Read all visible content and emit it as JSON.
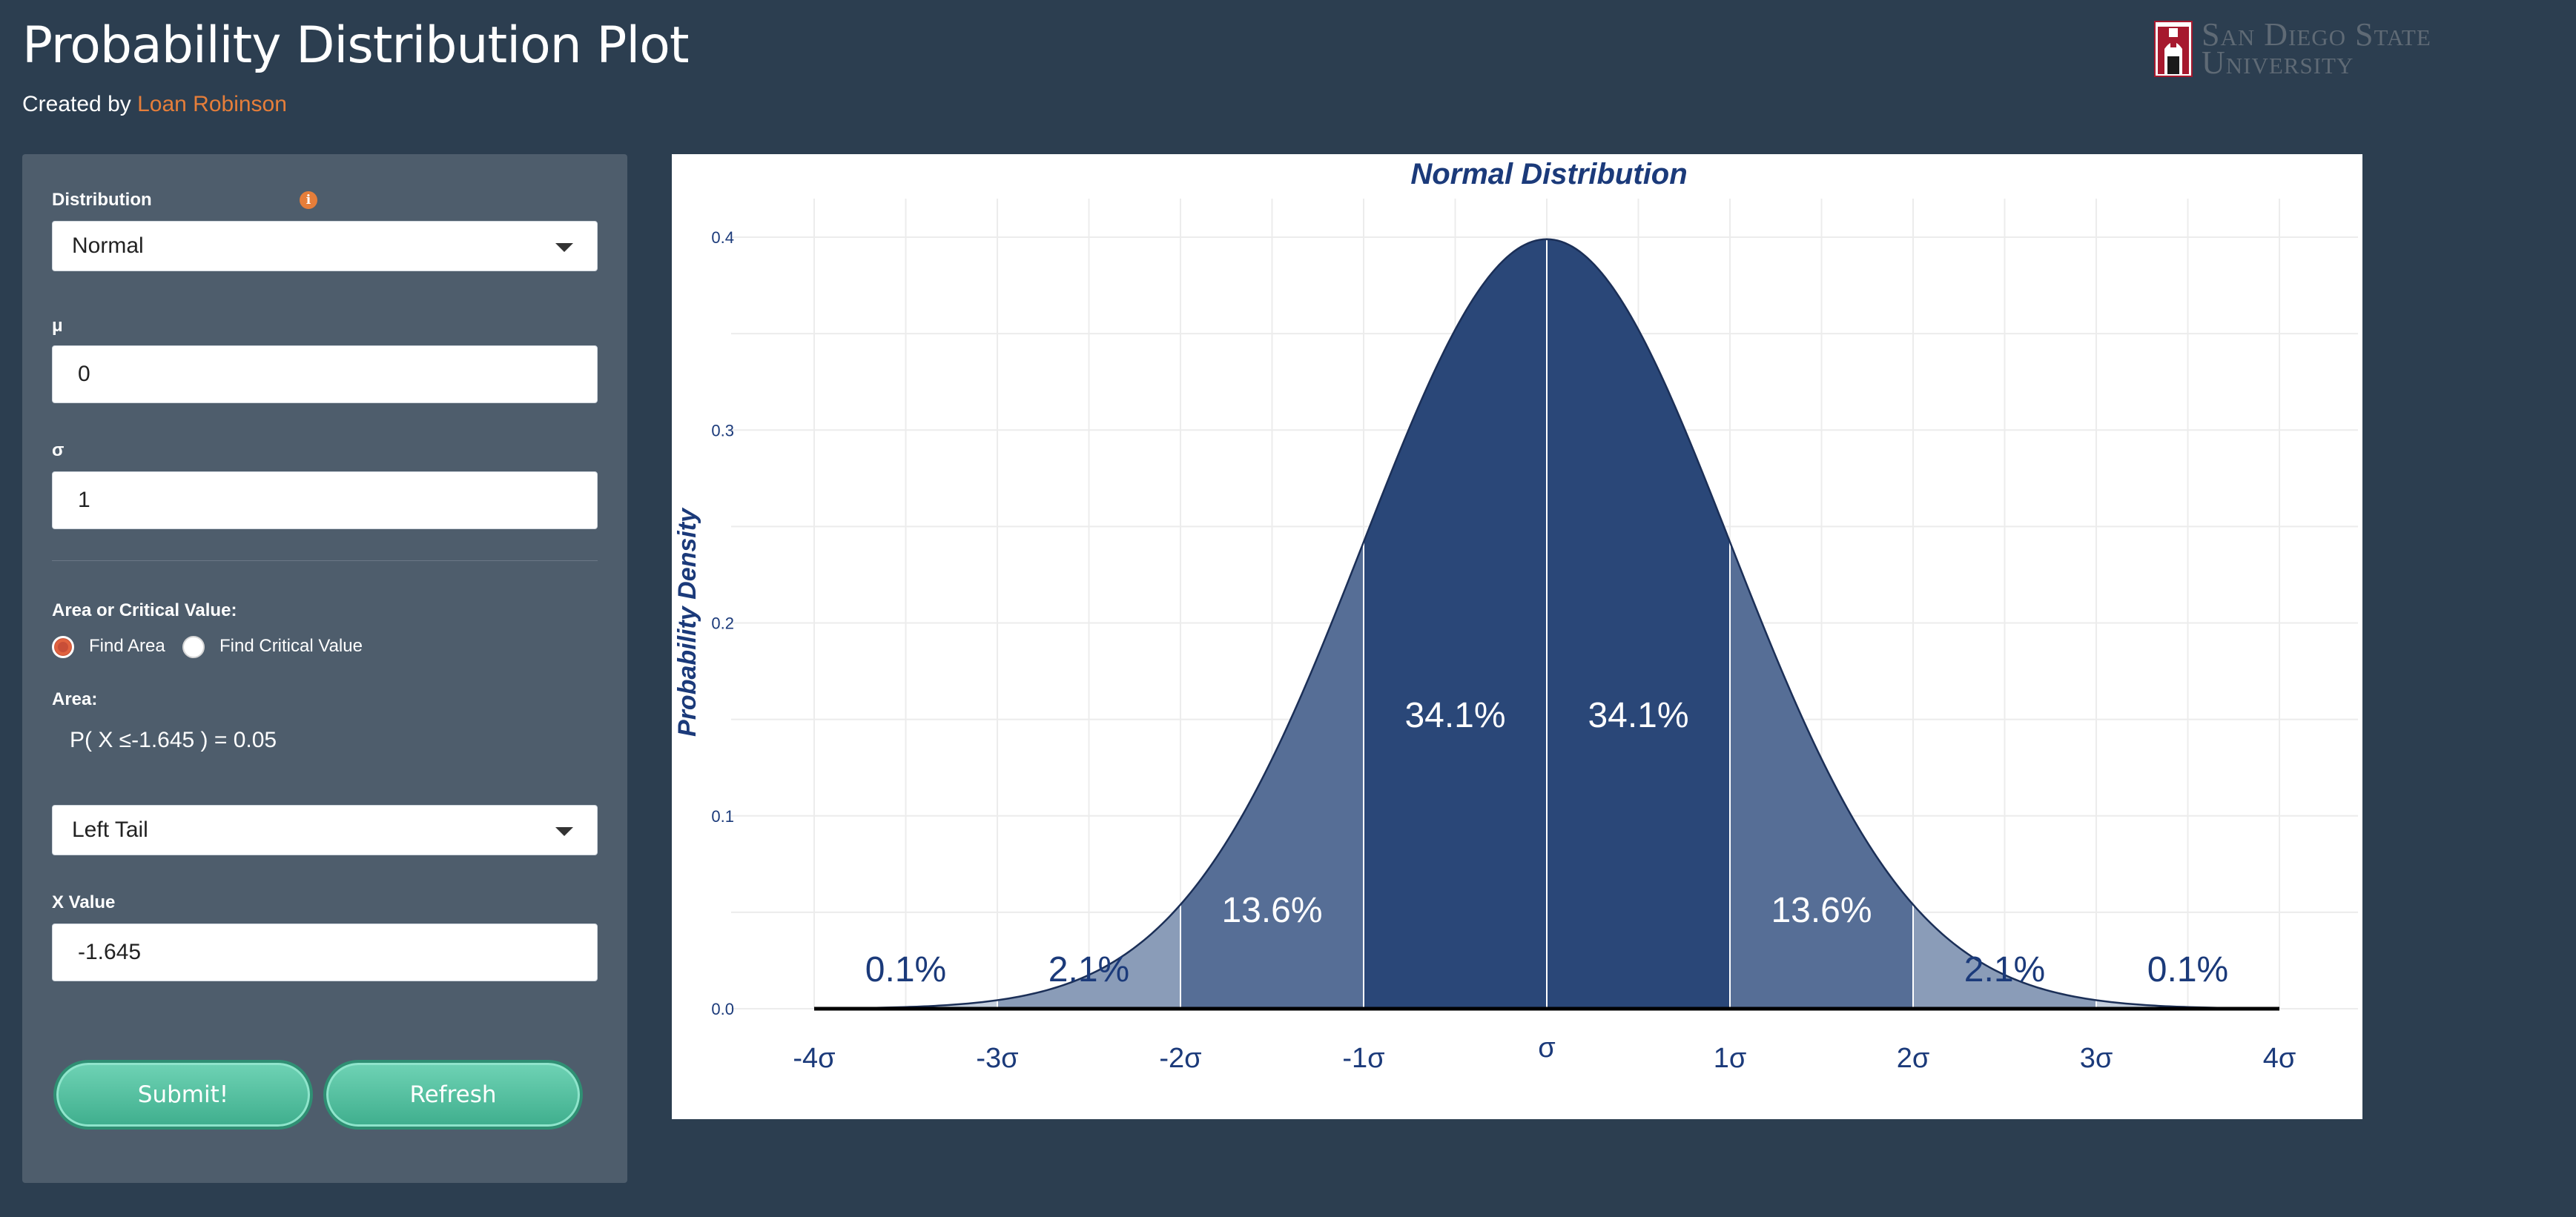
{
  "header": {
    "title": "Probability Distribution Plot",
    "byline_prefix": "Created by",
    "author": "Loan Robinson"
  },
  "logo": {
    "line1": "San Diego State",
    "line2": "University"
  },
  "sidebar": {
    "distribution_label": "Distribution",
    "distribution_value": "Normal",
    "mu_label": "μ",
    "mu_value": "0",
    "sigma_label": "σ",
    "sigma_value": "1",
    "mode_label": "Area or Critical Value:",
    "mode_options": [
      "Find Area",
      "Find Critical Value"
    ],
    "mode_selected": "Find Area",
    "area_label": "Area:",
    "area_result": "P( X ≤-1.645 ) = 0.05",
    "tail_value": "Left Tail",
    "x_label": "X Value",
    "x_value": "-1.645",
    "submit_label": "Submit!",
    "refresh_label": "Refresh"
  },
  "colors": {
    "page_bg": "#2c3e50",
    "sidebar_bg": "#4e5d6c",
    "accent": "#e67e3a",
    "button": "#4fc3a1",
    "curve_dark": "#2a4778",
    "curve_mid": "#566e96",
    "curve_light": "#8a9cb8",
    "curve_lightest": "#c5cfdd"
  },
  "chart_data": {
    "type": "area",
    "title": "Normal Distribution",
    "xlabel": "",
    "ylabel": "Probability Density",
    "xlim": [
      -4,
      4
    ],
    "ylim": [
      0,
      0.4
    ],
    "x_ticks": [
      -4,
      -3,
      -2,
      -1,
      0,
      1,
      2,
      3,
      4
    ],
    "x_tick_labels": [
      "-4σ",
      "-3σ",
      "-2σ",
      "-1σ",
      "σ",
      "1σ",
      "2σ",
      "3σ",
      "4σ"
    ],
    "y_ticks": [
      0.0,
      0.1,
      0.2,
      0.3,
      0.4
    ],
    "y_tick_labels": [
      "0.0",
      "0.1",
      "0.2",
      "0.3",
      "0.4"
    ],
    "mu": 0,
    "sigma": 1,
    "regions": [
      {
        "from": -4,
        "to": -3,
        "label": "0.1%",
        "percent": 0.1
      },
      {
        "from": -3,
        "to": -2,
        "label": "2.1%",
        "percent": 2.1
      },
      {
        "from": -2,
        "to": -1,
        "label": "13.6%",
        "percent": 13.6
      },
      {
        "from": -1,
        "to": 0,
        "label": "34.1%",
        "percent": 34.1
      },
      {
        "from": 0,
        "to": 1,
        "label": "34.1%",
        "percent": 34.1
      },
      {
        "from": 1,
        "to": 2,
        "label": "13.6%",
        "percent": 13.6
      },
      {
        "from": 2,
        "to": 3,
        "label": "2.1%",
        "percent": 2.1
      },
      {
        "from": 3,
        "to": 4,
        "label": "0.1%",
        "percent": 0.1
      }
    ],
    "grid": true
  }
}
